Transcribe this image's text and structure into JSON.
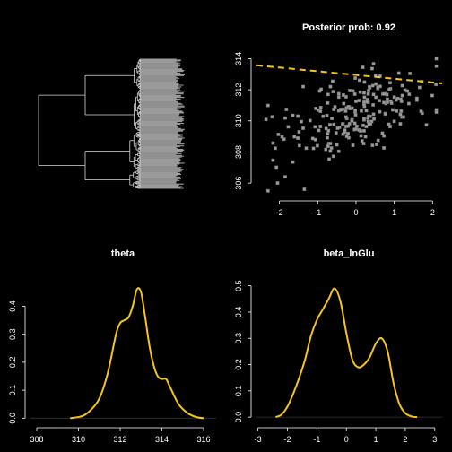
{
  "colors": {
    "background": "#000000",
    "foreground": "#ffffff",
    "tree_line": "#d9d9d9",
    "tip_fill": "#9a9a9a",
    "point": "#9a9a9a",
    "fit_line": "#f5c518",
    "density": "#f5c518",
    "axis": "#ffffff"
  },
  "chart_data": [
    {
      "type": "diagram",
      "kind": "phylogenetic-tree",
      "title": "",
      "tips": 150
    },
    {
      "type": "scatter",
      "title": "Posterior prob: 0.92",
      "xlabel": "",
      "ylabel": "",
      "xlim": [
        -2.6,
        2.25
      ],
      "ylim": [
        305.2,
        314.6
      ],
      "xticks": [
        "-2",
        "-1",
        "0",
        "1",
        "2"
      ],
      "yticks": [
        "306",
        "308",
        "310",
        "312",
        "314"
      ],
      "fit_line": {
        "intercept": 312.95,
        "slope": -0.24,
        "style": "dashed"
      },
      "points": []
    },
    {
      "type": "line",
      "title": "theta",
      "xlabel": "",
      "ylabel": "",
      "xlim": [
        307.7,
        316.6
      ],
      "ylim": [
        -0.015,
        0.52
      ],
      "xticks": [
        "308",
        "310",
        "312",
        "314",
        "316"
      ],
      "yticks": [
        "0.0",
        "0.1",
        "0.2",
        "0.3",
        "0.4"
      ],
      "x": [
        309.6,
        310.2,
        310.6,
        311.0,
        311.4,
        311.8,
        312.0,
        312.2,
        312.4,
        312.6,
        312.8,
        313.0,
        313.2,
        313.4,
        313.6,
        313.8,
        314.0,
        314.2,
        314.4,
        314.8,
        315.2,
        315.6,
        316.0
      ],
      "y": [
        0.0,
        0.008,
        0.03,
        0.07,
        0.16,
        0.3,
        0.34,
        0.35,
        0.36,
        0.4,
        0.46,
        0.45,
        0.36,
        0.26,
        0.19,
        0.15,
        0.14,
        0.14,
        0.11,
        0.05,
        0.02,
        0.005,
        0.0
      ]
    },
    {
      "type": "line",
      "title": "beta_lnGlu",
      "xlabel": "",
      "ylabel": "",
      "xlim": [
        -3.05,
        3.25
      ],
      "ylim": [
        -0.02,
        0.55
      ],
      "xticks": [
        "-3",
        "-2",
        "-1",
        "0",
        "1",
        "2",
        "3"
      ],
      "yticks": [
        "0.0",
        "0.1",
        "0.2",
        "0.3",
        "0.4",
        "0.5"
      ],
      "x": [
        -2.4,
        -2.2,
        -2.0,
        -1.8,
        -1.6,
        -1.4,
        -1.2,
        -1.0,
        -0.8,
        -0.6,
        -0.4,
        -0.2,
        0.0,
        0.2,
        0.4,
        0.6,
        0.8,
        1.0,
        1.2,
        1.4,
        1.6,
        1.8,
        2.0,
        2.2,
        2.4
      ],
      "y": [
        0.0,
        0.01,
        0.04,
        0.09,
        0.15,
        0.22,
        0.31,
        0.37,
        0.41,
        0.45,
        0.49,
        0.44,
        0.32,
        0.22,
        0.19,
        0.2,
        0.23,
        0.28,
        0.3,
        0.25,
        0.13,
        0.05,
        0.015,
        0.003,
        0.0
      ]
    }
  ]
}
